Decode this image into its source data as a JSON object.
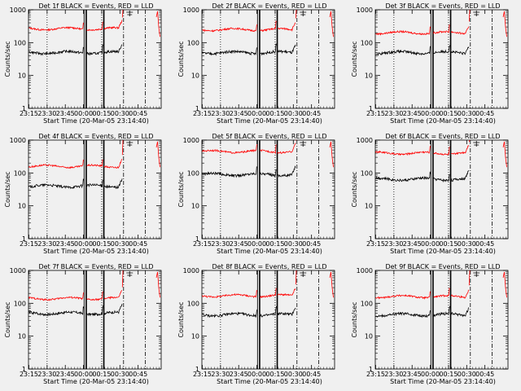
{
  "page": {
    "background": "#f0f0f0",
    "ylabel": "Counts/sec",
    "xlabel": "Start Time (20-Mar-05 23:14:40)",
    "colors": {
      "events": "#000000",
      "lld": "#ff0000"
    }
  },
  "chart_data": [
    {
      "type": "line",
      "title": "Det 1f BLACK = Events, RED = LLD",
      "events": 50,
      "lld": 265,
      "ylabel": "Counts/sec",
      "xlabel": "Start Time (20-Mar-05 23:14:40)"
    },
    {
      "type": "line",
      "title": "Det 2f BLACK = Events, RED = LLD",
      "events": 50,
      "lld": 250,
      "ylabel": "Counts/sec",
      "xlabel": "Start Time (20-Mar-05 23:14:40)"
    },
    {
      "type": "line",
      "title": "Det 3f BLACK = Events, RED = LLD",
      "events": 50,
      "lld": 200,
      "ylabel": "Counts/sec",
      "xlabel": "Start Time (20-Mar-05 23:14:40)"
    },
    {
      "type": "line",
      "title": "Det 4f BLACK = Events, RED = LLD",
      "events": 40,
      "lld": 160,
      "ylabel": "Counts/sec",
      "xlabel": "Start Time (20-Mar-05 23:14:40)"
    },
    {
      "type": "line",
      "title": "Det 5f BLACK = Events, RED = LLD",
      "events": 90,
      "lld": 450,
      "ylabel": "Counts/sec",
      "xlabel": "Start Time (20-Mar-05 23:14:40)"
    },
    {
      "type": "line",
      "title": "Det 6f BLACK = Events, RED = LLD",
      "events": 65,
      "lld": 400,
      "ylabel": "Counts/sec",
      "xlabel": "Start Time (20-Mar-05 23:14:40)"
    },
    {
      "type": "line",
      "title": "Det 7f BLACK = Events, RED = LLD",
      "events": 50,
      "lld": 140,
      "ylabel": "Counts/sec",
      "xlabel": "Start Time (20-Mar-05 23:14:40)"
    },
    {
      "type": "line",
      "title": "Det 8f BLACK = Events, RED = LLD",
      "events": 45,
      "lld": 170,
      "ylabel": "Counts/sec",
      "xlabel": "Start Time (20-Mar-05 23:14:40)"
    },
    {
      "type": "line",
      "title": "Det 9f BLACK = Events, RED = LLD",
      "events": 45,
      "lld": 160,
      "ylabel": "Counts/sec",
      "xlabel": "Start Time (20-Mar-05 23:14:40)"
    }
  ],
  "axes": {
    "xticks": [
      "23:15",
      "23:30",
      "23:45",
      "00:00",
      "00:15",
      "00:30",
      "00:45"
    ],
    "yscale": "log",
    "ylim": [
      1,
      1000
    ],
    "yticks": [
      "1",
      "10",
      "100",
      "1000"
    ],
    "tick_values_minutes": [
      15,
      30,
      45,
      60,
      75,
      90,
      105
    ],
    "xlim_minutes": [
      14.67,
      124
    ],
    "markers": {
      "dotted_minutes": [
        30,
        75
      ],
      "solid_minutes": [
        60.5,
        62,
        62.5,
        76.5,
        77
      ],
      "dashdot_minutes": [
        93,
        111
      ],
      "saa_minutes": 98
    }
  }
}
